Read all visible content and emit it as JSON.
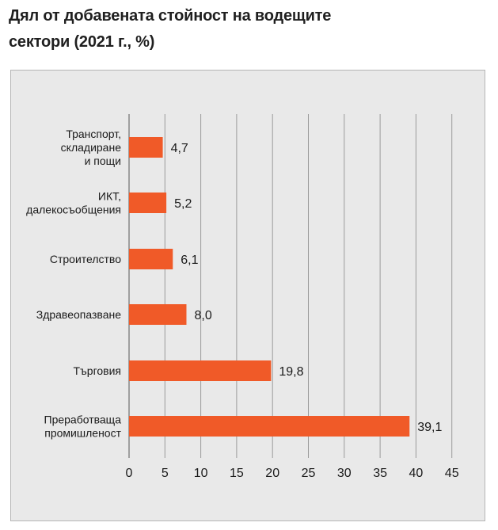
{
  "title_lines": [
    "Дял от добавената стойност на водещите",
    "сектори (2021 г., %)"
  ],
  "colors": {
    "bar": "#f05a28",
    "grid": "#9a9a9a",
    "panel_bg": "#e9e9e9",
    "axis": "#555555"
  },
  "chart_data": {
    "type": "bar",
    "orientation": "horizontal",
    "title": "Дял от добавената стойност на водещите сектори (2021 г., %)",
    "categories": [
      [
        "Транспорт,",
        "складиране",
        "и пощи"
      ],
      [
        "ИКТ,",
        "далекосъобщения"
      ],
      [
        "Строителство"
      ],
      [
        "Здравеопазване"
      ],
      [
        "Търговия"
      ],
      [
        "Преработваща",
        "промишленост"
      ]
    ],
    "values": [
      4.7,
      5.2,
      6.1,
      8.0,
      19.8,
      39.1
    ],
    "value_labels": [
      "4,7",
      "5,2",
      "6,1",
      "8,0",
      "19,8",
      "39,1"
    ],
    "xlim": [
      0,
      45
    ],
    "xticks": [
      0,
      5,
      10,
      15,
      20,
      25,
      30,
      35,
      40,
      45
    ],
    "grid": "vertical",
    "legend": "none"
  }
}
